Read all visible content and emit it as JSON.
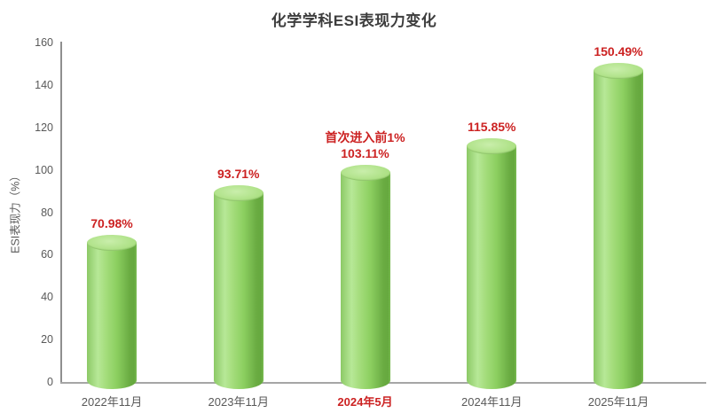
{
  "chart_data": {
    "type": "bar",
    "bar_style": "cylinder-3d",
    "title": "化学学科ESI表现力变化",
    "ylabel": "ESI表现力（%）",
    "xlabel": "",
    "ylim": [
      0,
      160
    ],
    "ytick_interval": 20,
    "yticks": [
      0,
      20,
      40,
      60,
      80,
      100,
      120,
      140,
      160
    ],
    "categories": [
      "2022年11月",
      "2023年11月",
      "2024年5月",
      "2024年11月",
      "2025年11月"
    ],
    "values": [
      70.98,
      93.71,
      103.11,
      115.85,
      150.49
    ],
    "value_labels": [
      "70.98%",
      "93.71%",
      "103.11%",
      "115.85%",
      "150.49%"
    ],
    "annotation": {
      "category_index": 2,
      "text": "首次进入前1%"
    },
    "highlighted_category_index": 2,
    "grid": false,
    "legend": "none",
    "colors": {
      "bar_fill": "#92d050",
      "bar_highlight": "#b7e897",
      "bar_shadow": "#65a83e",
      "bar_top_light": "#c9eeab",
      "bar_top": "#a9df80",
      "label_red": "#cc2222",
      "text_gray": "#595959",
      "title_color": "#3d3d3d",
      "y_axis_line": "#8f8f8f",
      "x_axis_line": "#a6a6a6",
      "background": "#ffffff"
    }
  }
}
